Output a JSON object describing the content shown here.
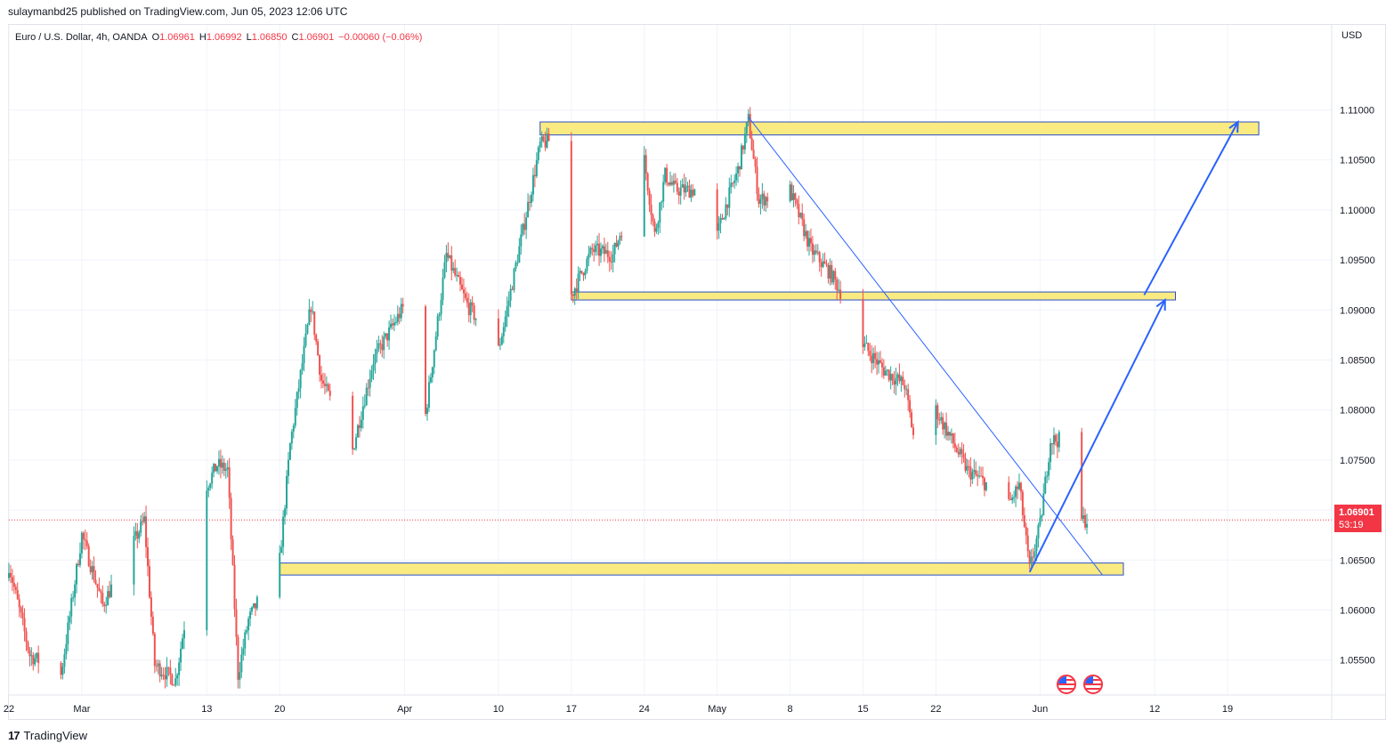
{
  "header": {
    "published": "sulaymanbd25 published on TradingView.com, Jun 05, 2023 12:06 UTC"
  },
  "legend": {
    "symbol": "Euro / U.S. Dollar, 4h, OANDA",
    "o_label": "O",
    "o_value": "1.06961",
    "h_label": "H",
    "h_value": "1.06992",
    "l_label": "L",
    "l_value": "1.06850",
    "c_label": "C",
    "c_value": "1.06901",
    "change": "−0.00060 (−0.06%)"
  },
  "price_scale": {
    "currency": "USD",
    "last_price": "1.06901",
    "countdown": "53:19"
  },
  "footer": {
    "logo_text": "TradingView"
  },
  "colors": {
    "up": "#26a69a",
    "down": "#ef5350",
    "zone_fill": "#f9ea82",
    "zone_border": "#2b4fc7",
    "trendline": "#2962ff",
    "last_price": "#f23645"
  },
  "icons": [
    "us-flag-icon",
    "us-flag-icon"
  ],
  "chart_data": {
    "type": "candlestick",
    "symbol": "EURUSD",
    "timeframe": "4h",
    "y_ticks": [
      1.055,
      1.06,
      1.065,
      1.07,
      1.075,
      1.08,
      1.085,
      1.09,
      1.095,
      1.1,
      1.105,
      1.11
    ],
    "y_tick_labels": [
      "1.05500",
      "1.06000",
      "1.06500",
      "1.07000",
      "1.07500",
      "1.08000",
      "1.08500",
      "1.09000",
      "1.09500",
      "1.10000",
      "1.10500",
      "1.11000"
    ],
    "ylim": [
      1.0515,
      1.1185
    ],
    "x_ticks": [
      "2023-02-22",
      "2023-03-01",
      "2023-03-13",
      "2023-03-20",
      "2023-04-01",
      "2023-04-10",
      "2023-04-17",
      "2023-04-24",
      "2023-05-01",
      "2023-05-08",
      "2023-05-15",
      "2023-05-22",
      "2023-06-01",
      "2023-06-12",
      "2023-06-19"
    ],
    "x_tick_labels": [
      "22",
      "Mar",
      "13",
      "20",
      "Apr",
      "10",
      "17",
      "24",
      "May",
      "8",
      "15",
      "22",
      "Jun",
      "12",
      "19"
    ],
    "xlim": [
      "2023-02-22",
      "2023-06-29"
    ],
    "price_path": [
      [
        "2023-02-22",
        1.0645
      ],
      [
        "2023-02-24",
        1.0555
      ],
      [
        "2023-02-27",
        1.0535
      ],
      [
        "2023-03-01",
        1.0675
      ],
      [
        "2023-03-03",
        1.0605
      ],
      [
        "2023-03-06",
        1.0668
      ],
      [
        "2023-03-07",
        1.069
      ],
      [
        "2023-03-08",
        1.0545
      ],
      [
        "2023-03-10",
        1.053
      ],
      [
        "2023-03-13",
        1.0725
      ],
      [
        "2023-03-14",
        1.0745
      ],
      [
        "2023-03-15",
        1.074
      ],
      [
        "2023-03-16",
        1.0535
      ],
      [
        "2023-03-17",
        1.059
      ],
      [
        "2023-03-20",
        1.065
      ],
      [
        "2023-03-21",
        1.0765
      ],
      [
        "2023-03-23",
        1.0905
      ],
      [
        "2023-03-24",
        1.083
      ],
      [
        "2023-03-27",
        1.076
      ],
      [
        "2023-03-29",
        1.085
      ],
      [
        "2023-04-01",
        1.0905
      ],
      [
        "2023-04-03",
        1.0795
      ],
      [
        "2023-04-05",
        1.0955
      ],
      [
        "2023-04-07",
        1.0905
      ],
      [
        "2023-04-10",
        1.086
      ],
      [
        "2023-04-11",
        1.091
      ],
      [
        "2023-04-14",
        1.1065
      ],
      [
        "2023-04-15",
        1.107
      ],
      [
        "2023-04-16",
        1.0985
      ],
      [
        "2023-04-17",
        1.0915
      ],
      [
        "2023-04-19",
        1.096
      ],
      [
        "2023-04-21",
        1.0955
      ],
      [
        "2023-04-24",
        1.105
      ],
      [
        "2023-04-25",
        1.0975
      ],
      [
        "2023-04-26",
        1.1035
      ],
      [
        "2023-04-27",
        1.102
      ],
      [
        "2023-04-29",
        1.102
      ],
      [
        "2023-05-01",
        1.0975
      ],
      [
        "2023-05-02",
        1.101
      ],
      [
        "2023-05-03",
        1.104
      ],
      [
        "2023-05-04",
        1.109
      ],
      [
        "2023-05-05",
        1.101
      ],
      [
        "2023-05-08",
        1.102
      ],
      [
        "2023-05-10",
        1.096
      ],
      [
        "2023-05-12",
        1.0935
      ],
      [
        "2023-05-13",
        1.0915
      ],
      [
        "2023-05-14",
        1.0855
      ],
      [
        "2023-05-15",
        1.0865
      ],
      [
        "2023-05-17",
        1.084
      ],
      [
        "2023-05-19",
        1.0825
      ],
      [
        "2023-05-20",
        1.0765
      ],
      [
        "2023-05-22",
        1.08
      ],
      [
        "2023-05-25",
        1.074
      ],
      [
        "2023-05-27",
        1.0725
      ],
      [
        "2023-05-29",
        1.0705
      ],
      [
        "2023-05-30",
        1.0725
      ],
      [
        "2023-05-31",
        1.064
      ],
      [
        "2023-06-01",
        1.0685
      ],
      [
        "2023-06-02",
        1.077
      ],
      [
        "2023-06-03",
        1.077
      ],
      [
        "2023-06-04",
        1.071
      ],
      [
        "2023-06-05",
        1.069
      ]
    ],
    "annotations": [
      {
        "type": "zone",
        "from": "2023-04-14",
        "to": "2023-06-22",
        "top": 1.1088,
        "bottom": 1.1075
      },
      {
        "type": "zone",
        "from": "2023-04-17",
        "to": "2023-06-14",
        "top": 1.0918,
        "bottom": 1.091
      },
      {
        "type": "zone",
        "from": "2023-03-20",
        "to": "2023-06-09",
        "top": 1.0647,
        "bottom": 1.0635
      },
      {
        "type": "trendline",
        "points": [
          [
            "2023-05-04",
            1.1093
          ],
          [
            "2023-06-07",
            1.0635
          ]
        ]
      },
      {
        "type": "arrow",
        "points": [
          [
            "2023-05-31",
            1.0638
          ],
          [
            "2023-06-13",
            1.091
          ]
        ]
      },
      {
        "type": "arrow",
        "points": [
          [
            "2023-06-11",
            1.0915
          ],
          [
            "2023-06-20",
            1.1088
          ]
        ]
      }
    ]
  }
}
